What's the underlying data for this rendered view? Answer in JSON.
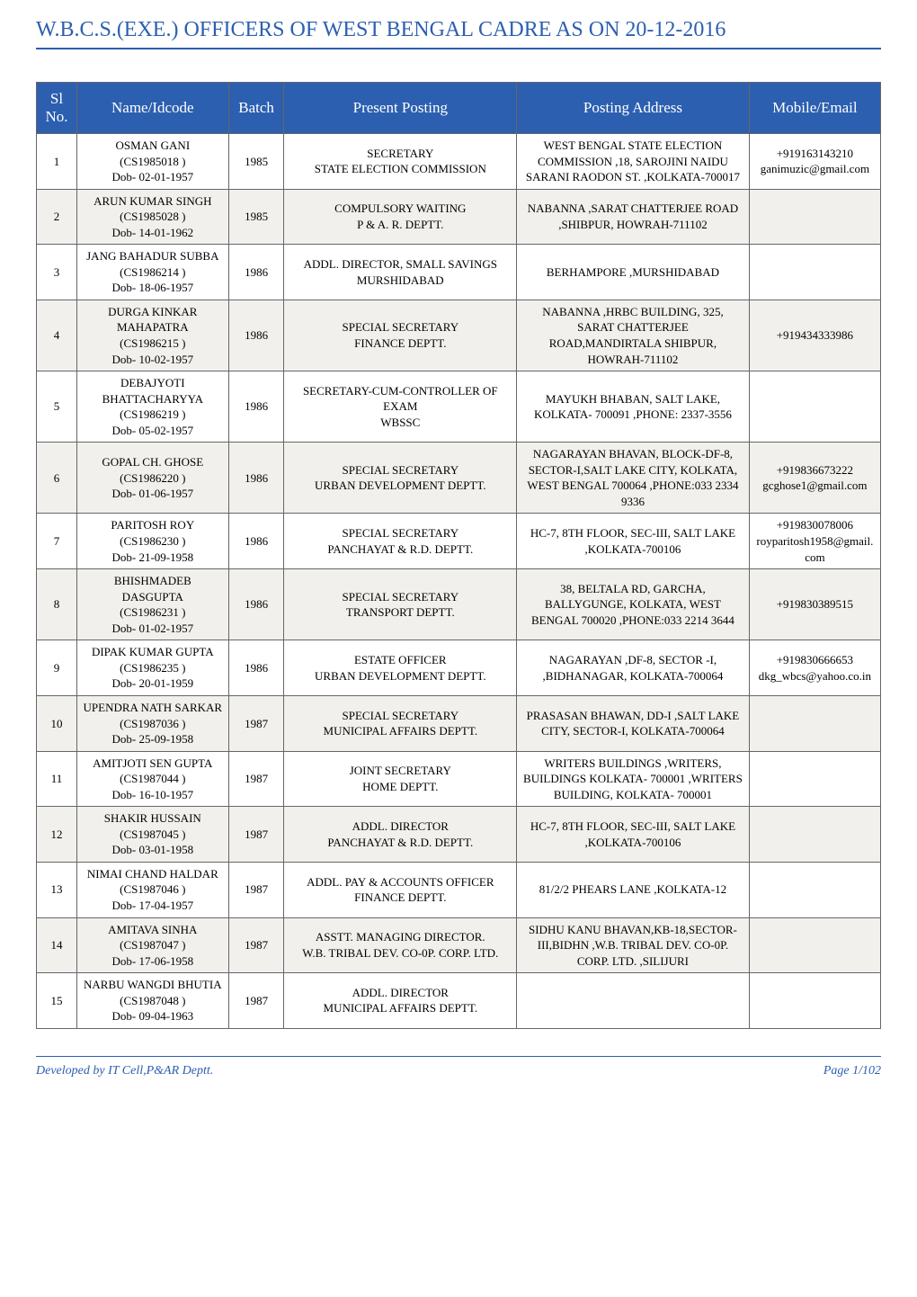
{
  "page": {
    "title": "W.B.C.S.(EXE.) OFFICERS OF WEST BENGAL CADRE AS ON 20-12-2016",
    "footer_left": "Developed by IT Cell,P&AR Deptt.",
    "footer_right": "Page 1/102"
  },
  "style": {
    "title_color": "#2c5fb0",
    "title_fontsize": 24,
    "header_bg": "#2c5fb0",
    "header_fg": "#ffffff",
    "header_fontsize": 17,
    "cell_fontsize": 13,
    "alt_row_bg": "#f2f0ed",
    "border_color": "#666666",
    "footer_color": "#2c5fb0",
    "footer_fontsize": 14,
    "column_widths": {
      "sl": 40,
      "name": 150,
      "batch": 55,
      "posting": 230,
      "address": 230,
      "mobile": 130
    }
  },
  "table": {
    "columns": [
      {
        "key": "sl",
        "label": "Sl No."
      },
      {
        "key": "name",
        "label": "Name/Idcode"
      },
      {
        "key": "batch",
        "label": "Batch"
      },
      {
        "key": "posting",
        "label": "Present Posting"
      },
      {
        "key": "address",
        "label": "Posting Address"
      },
      {
        "key": "mobile",
        "label": "Mobile/Email"
      }
    ],
    "rows": [
      {
        "sl": "1",
        "name": "OSMAN GANI\n(CS1985018 )\nDob- 02-01-1957",
        "batch": "1985",
        "posting": "SECRETARY\nSTATE ELECTION COMMISSION",
        "address": "WEST BENGAL STATE ELECTION COMMISSION ,18, SAROJINI NAIDU SARANI RAODON ST. ,KOLKATA-700017",
        "mobile": "+919163143210\nganimuzic@gmail.com"
      },
      {
        "sl": "2",
        "name": "ARUN KUMAR SINGH\n(CS1985028 )\nDob- 14-01-1962",
        "batch": "1985",
        "posting": "COMPULSORY WAITING\nP & A. R. DEPTT.",
        "address": "NABANNA ,SARAT CHATTERJEE ROAD ,SHIBPUR, HOWRAH-711102",
        "mobile": ""
      },
      {
        "sl": "3",
        "name": "JANG BAHADUR SUBBA\n(CS1986214 )\nDob- 18-06-1957",
        "batch": "1986",
        "posting": "ADDL. DIRECTOR, SMALL SAVINGS\nMURSHIDABAD",
        "address": "BERHAMPORE ,MURSHIDABAD",
        "mobile": ""
      },
      {
        "sl": "4",
        "name": "DURGA KINKAR MAHAPATRA\n(CS1986215 )\nDob- 10-02-1957",
        "batch": "1986",
        "posting": "SPECIAL SECRETARY\nFINANCE DEPTT.",
        "address": "NABANNA ,HRBC BUILDING, 325, SARAT CHATTERJEE ROAD,MANDIRTALA SHIBPUR, HOWRAH-711102",
        "mobile": "+919434333986"
      },
      {
        "sl": "5",
        "name": "DEBAJYOTI BHATTACHARYYA\n(CS1986219 )\nDob- 05-02-1957",
        "batch": "1986",
        "posting": "SECRETARY-CUM-CONTROLLER OF EXAM\nWBSSC",
        "address": "MAYUKH BHABAN, SALT LAKE, KOLKATA- 700091 ,PHONE: 2337-3556",
        "mobile": ""
      },
      {
        "sl": "6",
        "name": "GOPAL CH. GHOSE\n(CS1986220 )\nDob- 01-06-1957",
        "batch": "1986",
        "posting": "SPECIAL SECRETARY\nURBAN DEVELOPMENT DEPTT.",
        "address": "NAGARAYAN BHAVAN, BLOCK-DF-8, SECTOR-I,SALT LAKE CITY, KOLKATA, WEST BENGAL 700064 ,PHONE:033 2334 9336",
        "mobile": "+919836673222\ngcghose1@gmail.com"
      },
      {
        "sl": "7",
        "name": "PARITOSH ROY\n(CS1986230 )\nDob- 21-09-1958",
        "batch": "1986",
        "posting": "SPECIAL SECRETARY\nPANCHAYAT & R.D. DEPTT.",
        "address": "HC-7, 8TH FLOOR, SEC-III, SALT LAKE ,KOLKATA-700106",
        "mobile": "+919830078006\nroyparitosh1958@gmail.com"
      },
      {
        "sl": "8",
        "name": "BHISHMADEB DASGUPTA\n(CS1986231 )\nDob- 01-02-1957",
        "batch": "1986",
        "posting": "SPECIAL SECRETARY\nTRANSPORT DEPTT.",
        "address": "38, BELTALA RD, GARCHA, BALLYGUNGE, KOLKATA, WEST BENGAL 700020 ,PHONE:033 2214 3644",
        "mobile": "+919830389515"
      },
      {
        "sl": "9",
        "name": "DIPAK KUMAR GUPTA\n(CS1986235 )\nDob- 20-01-1959",
        "batch": "1986",
        "posting": "ESTATE OFFICER\nURBAN DEVELOPMENT DEPTT.",
        "address": "NAGARAYAN ,DF-8, SECTOR -I, ,BIDHANAGAR, KOLKATA-700064",
        "mobile": "+919830666653\ndkg_wbcs@yahoo.co.in"
      },
      {
        "sl": "10",
        "name": "UPENDRA NATH SARKAR\n(CS1987036 )\nDob- 25-09-1958",
        "batch": "1987",
        "posting": "SPECIAL SECRETARY\nMUNICIPAL AFFAIRS DEPTT.",
        "address": "PRASASAN BHAWAN, DD-I ,SALT LAKE CITY, SECTOR-I, KOLKATA-700064",
        "mobile": ""
      },
      {
        "sl": "11",
        "name": "AMITJOTI SEN GUPTA\n(CS1987044 )\nDob- 16-10-1957",
        "batch": "1987",
        "posting": "JOINT SECRETARY\nHOME DEPTT.",
        "address": "WRITERS BUILDINGS ,WRITERS, BUILDINGS KOLKATA- 700001 ,WRITERS BUILDING, KOLKATA- 700001",
        "mobile": ""
      },
      {
        "sl": "12",
        "name": "SHAKIR HUSSAIN\n(CS1987045 )\nDob- 03-01-1958",
        "batch": "1987",
        "posting": "ADDL. DIRECTOR\nPANCHAYAT & R.D. DEPTT.",
        "address": "HC-7, 8TH FLOOR, SEC-III, SALT LAKE ,KOLKATA-700106",
        "mobile": ""
      },
      {
        "sl": "13",
        "name": "NIMAI CHAND HALDAR\n(CS1987046 )\nDob- 17-04-1957",
        "batch": "1987",
        "posting": "ADDL. PAY & ACCOUNTS OFFICER\nFINANCE DEPTT.",
        "address": "81/2/2 PHEARS LANE ,KOLKATA-12",
        "mobile": ""
      },
      {
        "sl": "14",
        "name": "AMITAVA SINHA\n(CS1987047 )\nDob- 17-06-1958",
        "batch": "1987",
        "posting": "ASSTT. MANAGING DIRECTOR.\nW.B. TRIBAL DEV. CO-0P. CORP. LTD.",
        "address": "SIDHU KANU BHAVAN,KB-18,SECTOR-III,BIDHN ,W.B. TRIBAL DEV. CO-0P. CORP. LTD. ,SILIJURI",
        "mobile": ""
      },
      {
        "sl": "15",
        "name": "NARBU WANGDI BHUTIA\n(CS1987048 )\nDob- 09-04-1963",
        "batch": "1987",
        "posting": "ADDL. DIRECTOR\nMUNICIPAL AFFAIRS DEPTT.",
        "address": "",
        "mobile": ""
      }
    ]
  }
}
